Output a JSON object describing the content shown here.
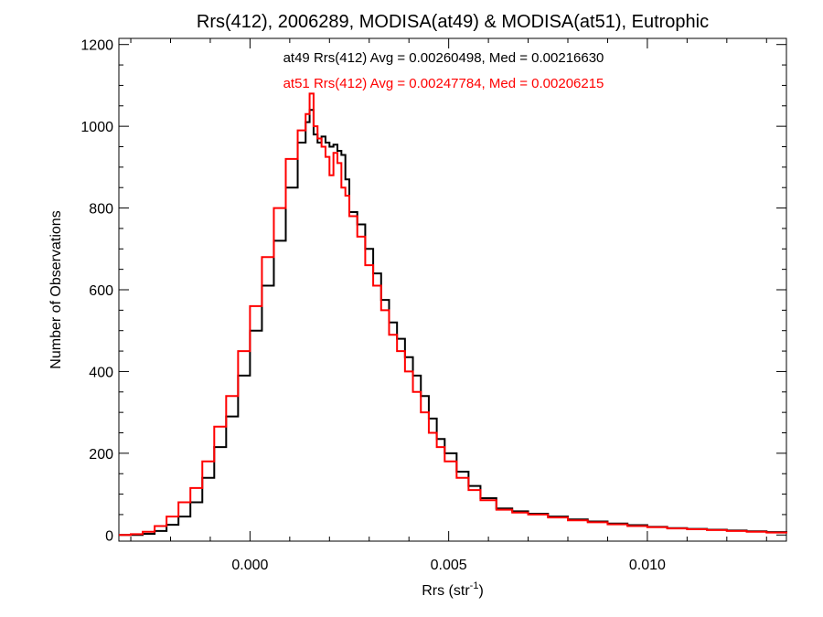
{
  "chart_data": {
    "type": "line",
    "title": "Rrs(412), 2006289, MODISA(at49) & MODISA(at51), Eutrophic",
    "xlabel": "Rrs (str",
    "xlabel_sup": "-1",
    "xlabel_end": ")",
    "ylabel": "Number of Observations",
    "xlim": [
      -0.0033,
      0.0135
    ],
    "ylim": [
      -15,
      1215
    ],
    "xticks": [
      0.0,
      0.005,
      0.01
    ],
    "xtick_labels": [
      "0.000",
      "0.005",
      "0.010"
    ],
    "yticks": [
      0,
      200,
      400,
      600,
      800,
      1000,
      1200
    ],
    "ytick_labels": [
      "0",
      "200",
      "400",
      "600",
      "800",
      "1000",
      "1200"
    ],
    "grid": false,
    "annotations": [
      {
        "text": "at49 Rrs(412) Avg = 0.00260498, Med = 0.00216630",
        "color": "#000000"
      },
      {
        "text": "at51 Rrs(412) Avg = 0.00247784, Med = 0.00206215",
        "color": "#ff0000"
      }
    ],
    "series": [
      {
        "color": "#000000",
        "x": [
          -0.0033,
          -0.003,
          -0.0027,
          -0.0024,
          -0.0021,
          -0.0018,
          -0.0015,
          -0.0012,
          -0.0009,
          -0.0006,
          -0.0003,
          0.0,
          0.0003,
          0.0006,
          0.0009,
          0.0012,
          0.0014,
          0.0015,
          0.0016,
          0.0017,
          0.0018,
          0.0019,
          0.002,
          0.0021,
          0.0022,
          0.0023,
          0.0024,
          0.0025,
          0.0027,
          0.0029,
          0.0031,
          0.0033,
          0.0035,
          0.0037,
          0.0039,
          0.0041,
          0.0043,
          0.0045,
          0.0047,
          0.0049,
          0.0052,
          0.0055,
          0.0058,
          0.0062,
          0.0066,
          0.007,
          0.0075,
          0.008,
          0.0085,
          0.009,
          0.0095,
          0.01,
          0.0105,
          0.011,
          0.0115,
          0.012,
          0.0125,
          0.013,
          0.0135
        ],
        "y": [
          0,
          0,
          3,
          10,
          25,
          45,
          80,
          140,
          215,
          290,
          390,
          500,
          610,
          720,
          850,
          960,
          1010,
          1040,
          980,
          960,
          975,
          960,
          950,
          955,
          940,
          930,
          870,
          790,
          760,
          700,
          640,
          575,
          520,
          480,
          435,
          390,
          340,
          285,
          235,
          200,
          155,
          120,
          90,
          65,
          58,
          52,
          45,
          38,
          33,
          28,
          24,
          20,
          17,
          15,
          13,
          11,
          9,
          7,
          5
        ]
      },
      {
        "color": "#ff0000",
        "x": [
          -0.0033,
          -0.003,
          -0.0027,
          -0.0024,
          -0.0021,
          -0.0018,
          -0.0015,
          -0.0012,
          -0.0009,
          -0.0006,
          -0.0003,
          0.0,
          0.0003,
          0.0006,
          0.0009,
          0.0012,
          0.0014,
          0.0015,
          0.0016,
          0.0017,
          0.0018,
          0.0019,
          0.002,
          0.0021,
          0.0022,
          0.0023,
          0.0024,
          0.0025,
          0.0027,
          0.0029,
          0.0031,
          0.0033,
          0.0035,
          0.0037,
          0.0039,
          0.0041,
          0.0043,
          0.0045,
          0.0047,
          0.0049,
          0.0052,
          0.0055,
          0.0058,
          0.0062,
          0.0066,
          0.007,
          0.0075,
          0.008,
          0.0085,
          0.009,
          0.0095,
          0.01,
          0.0105,
          0.011,
          0.0115,
          0.012,
          0.0125,
          0.013,
          0.0135
        ],
        "y": [
          0,
          2,
          8,
          22,
          45,
          80,
          115,
          180,
          265,
          340,
          450,
          560,
          680,
          800,
          920,
          990,
          1030,
          1080,
          1000,
          970,
          950,
          925,
          880,
          935,
          910,
          850,
          830,
          780,
          730,
          660,
          610,
          550,
          490,
          450,
          400,
          350,
          300,
          250,
          215,
          180,
          140,
          110,
          85,
          62,
          55,
          50,
          43,
          36,
          31,
          26,
          22,
          19,
          16,
          14,
          12,
          10,
          8,
          6,
          4
        ]
      }
    ]
  }
}
